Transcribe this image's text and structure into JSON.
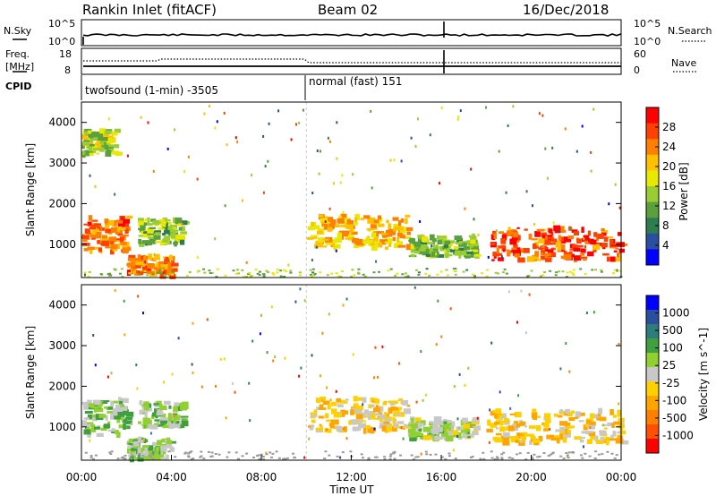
{
  "header": {
    "station": "Rankin Inlet (fitACF)",
    "beam": "Beam 02",
    "date": "16/Dec/2018"
  },
  "noise_panel": {
    "left_label": "N.Sky",
    "right_label": "N.Search",
    "left_ticks": [
      "10^5",
      "10^0"
    ],
    "right_ticks": [
      "10^5",
      "10^0"
    ]
  },
  "freq_panel": {
    "left_label_1": "Freq.",
    "left_label_2": "[MHz]",
    "right_label": "Nave",
    "left_ticks": [
      "18",
      "8"
    ],
    "right_ticks": [
      "60",
      "0"
    ]
  },
  "cpid_panel": {
    "label": "CPID",
    "modes": [
      {
        "name": "twofsound (1-min) -3505",
        "start": 0,
        "end": 10
      },
      {
        "name": "normal (fast) 151",
        "start": 10,
        "end": 24
      }
    ]
  },
  "colors": {
    "power_scale": [
      "#0000ff",
      "#2a4fa0",
      "#2e7d4f",
      "#5aa03c",
      "#9acd32",
      "#e8e800",
      "#ffc000",
      "#ff8000",
      "#ff4000",
      "#ff0000"
    ],
    "velocity_scale": [
      "#ff0000",
      "#ff5000",
      "#ff8000",
      "#ffa500",
      "#ffd000",
      "#c8c8c8",
      "#90d030",
      "#40a040",
      "#2e7d7d",
      "#2a4fa0",
      "#0000ff"
    ],
    "ground_scatter": "#9a9a9a"
  },
  "chart_data": [
    {
      "type": "heatmap",
      "panel": "power",
      "ylabel": "Slant Range [km]",
      "xlabel": "",
      "xlim": [
        0,
        24
      ],
      "ylim": [
        180,
        4500
      ],
      "yticks": [
        "4000",
        "3000",
        "2000",
        "1000"
      ],
      "colorbar_label": "Power [dB]",
      "colorbar_ticks": [
        "28",
        "24",
        "20",
        "16",
        "12",
        "8",
        "4"
      ],
      "colorbar_range": [
        0,
        30
      ],
      "regions": [
        {
          "t0": 0.0,
          "t1": 2.0,
          "r0": 800,
          "r1": 1700,
          "value": 24
        },
        {
          "t0": 2.0,
          "t1": 4.0,
          "r0": 200,
          "r1": 700,
          "value": 24
        },
        {
          "t0": 2.5,
          "t1": 4.5,
          "r0": 1000,
          "r1": 1600,
          "value": 12
        },
        {
          "t0": 0.0,
          "t1": 1.5,
          "r0": 3200,
          "r1": 3800,
          "value": 14
        },
        {
          "t0": 10.0,
          "t1": 14.5,
          "r0": 900,
          "r1": 1700,
          "value": 20
        },
        {
          "t0": 14.5,
          "t1": 17.5,
          "r0": 700,
          "r1": 1200,
          "value": 12
        },
        {
          "t0": 18.0,
          "t1": 24.0,
          "r0": 600,
          "r1": 1400,
          "value": 26
        }
      ]
    },
    {
      "type": "heatmap",
      "panel": "velocity",
      "ylabel": "Slant Range [km]",
      "xlabel": "Time UT",
      "xlim": [
        0,
        24
      ],
      "ylim": [
        180,
        4500
      ],
      "xticks": [
        "00:00",
        "04:00",
        "08:00",
        "12:00",
        "16:00",
        "20:00",
        "00:00"
      ],
      "yticks": [
        "4000",
        "3000",
        "2000",
        "1000"
      ],
      "colorbar_label": "Velocity [m s^-1]",
      "colorbar_ticks": [
        "1000",
        "500",
        "100",
        "25",
        "-25",
        "-100",
        "-500",
        "-1000"
      ],
      "colorbar_range": [
        -1000,
        1000
      ],
      "regions": [
        {
          "t0": 0.0,
          "t1": 2.0,
          "r0": 800,
          "r1": 1700,
          "value": 200
        },
        {
          "t0": 2.0,
          "t1": 4.0,
          "r0": 200,
          "r1": 700,
          "value": 150
        },
        {
          "t0": 2.5,
          "t1": 4.5,
          "r0": 1000,
          "r1": 1600,
          "value": 200
        },
        {
          "t0": 10.0,
          "t1": 14.5,
          "r0": 900,
          "r1": 1700,
          "value": -200
        },
        {
          "t0": 14.5,
          "t1": 17.5,
          "r0": 700,
          "r1": 1200,
          "value": 100
        },
        {
          "t0": 18.0,
          "t1": 24.0,
          "r0": 600,
          "r1": 1400,
          "value": -250
        }
      ]
    }
  ]
}
